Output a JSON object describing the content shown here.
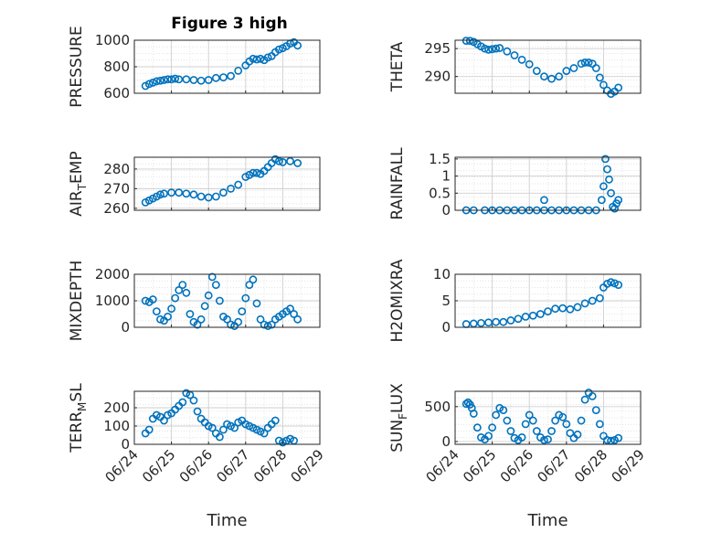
{
  "title": "Figure 3 high",
  "colors": {
    "marker": "#0072BD",
    "grid": "#dcdcdc",
    "axis": "#262626"
  },
  "chart_data": [
    {
      "type": "scatter",
      "title": "Figure 3 high",
      "ylabel": "PRESSURE",
      "ylim": [
        600,
        1000
      ],
      "yticks": [
        "600",
        "800",
        "1000"
      ],
      "grid": true,
      "x": [
        0.3,
        0.4,
        0.5,
        0.6,
        0.7,
        0.8,
        0.9,
        1.0,
        1.1,
        1.2,
        1.4,
        1.6,
        1.8,
        2.0,
        2.2,
        2.4,
        2.6,
        2.8,
        3.0,
        3.1,
        3.2,
        3.3,
        3.4,
        3.5,
        3.6,
        3.7,
        3.8,
        3.9,
        4.0,
        4.1,
        4.2,
        4.3,
        4.4
      ],
      "y": [
        655,
        670,
        680,
        690,
        695,
        700,
        705,
        705,
        710,
        705,
        705,
        700,
        695,
        700,
        715,
        720,
        730,
        770,
        810,
        840,
        860,
        855,
        860,
        850,
        870,
        880,
        910,
        930,
        940,
        955,
        975,
        985,
        960
      ]
    },
    {
      "type": "scatter",
      "ylabel": "THETA",
      "ylim": [
        287,
        296.5
      ],
      "yticks": [
        "290",
        "295"
      ],
      "grid": true,
      "x": [
        0.3,
        0.4,
        0.5,
        0.6,
        0.7,
        0.8,
        0.9,
        1.0,
        1.1,
        1.2,
        1.4,
        1.6,
        1.8,
        2.0,
        2.2,
        2.4,
        2.6,
        2.8,
        3.0,
        3.2,
        3.4,
        3.5,
        3.6,
        3.7,
        3.8,
        3.9,
        4.0,
        4.1,
        4.2,
        4.3,
        4.4
      ],
      "y": [
        296.4,
        296.4,
        296.2,
        295.8,
        295.4,
        295.0,
        294.8,
        294.9,
        295.0,
        295.1,
        294.5,
        293.8,
        293.0,
        292.2,
        291.0,
        290.0,
        289.6,
        290.0,
        291.0,
        291.5,
        292.3,
        292.5,
        292.5,
        292.3,
        291.5,
        289.8,
        288.5,
        287.5,
        286.9,
        287.3,
        288.0
      ]
    },
    {
      "type": "scatter",
      "ylabel": "AIR_TEMP",
      "ylim": [
        259,
        286
      ],
      "yticks": [
        "260",
        "270",
        "280"
      ],
      "grid": true,
      "x": [
        0.3,
        0.4,
        0.5,
        0.6,
        0.7,
        0.8,
        1.0,
        1.2,
        1.4,
        1.6,
        1.8,
        2.0,
        2.2,
        2.4,
        2.6,
        2.8,
        3.0,
        3.1,
        3.2,
        3.3,
        3.4,
        3.5,
        3.6,
        3.7,
        3.8,
        3.9,
        4.0,
        4.2,
        4.4
      ],
      "y": [
        263,
        264,
        265,
        266,
        267,
        267.5,
        268,
        268,
        267.5,
        267,
        266,
        265.5,
        266,
        268,
        270,
        272,
        276,
        277,
        278,
        278,
        277.5,
        279,
        281,
        283,
        285,
        284,
        283.5,
        284,
        283
      ]
    },
    {
      "type": "scatter",
      "ylabel": "RAINFALL",
      "ylim": [
        0,
        1.55
      ],
      "yticks": [
        "0",
        "0.5",
        "1",
        "1.5"
      ],
      "grid": true,
      "x": [
        0.3,
        0.5,
        0.8,
        1.0,
        1.2,
        1.4,
        1.6,
        1.8,
        2.0,
        2.2,
        2.4,
        2.6,
        2.8,
        3.0,
        3.2,
        3.4,
        3.6,
        3.8,
        3.95,
        4.0,
        4.05,
        4.1,
        4.15,
        4.2,
        4.25,
        4.3,
        4.35,
        4.4,
        2.4
      ],
      "y": [
        0,
        0,
        0,
        0,
        0,
        0,
        0,
        0,
        0,
        0,
        0,
        0,
        0,
        0,
        0,
        0,
        0,
        0,
        0.3,
        0.7,
        1.5,
        1.2,
        0.9,
        0.5,
        0.1,
        0.05,
        0.2,
        0.3,
        0.3
      ]
    },
    {
      "type": "scatter",
      "ylabel": "MIXDEPTH",
      "ylim": [
        0,
        2000
      ],
      "yticks": [
        "0",
        "1000",
        "2000"
      ],
      "grid": true,
      "x": [
        0.3,
        0.4,
        0.5,
        0.6,
        0.7,
        0.8,
        0.9,
        1.0,
        1.1,
        1.2,
        1.3,
        1.4,
        1.5,
        1.6,
        1.7,
        1.8,
        1.9,
        2.0,
        2.1,
        2.2,
        2.3,
        2.4,
        2.5,
        2.6,
        2.7,
        2.8,
        2.9,
        3.0,
        3.1,
        3.2,
        3.3,
        3.4,
        3.5,
        3.6,
        3.7,
        3.8,
        3.9,
        4.0,
        4.1,
        4.2,
        4.3,
        4.4
      ],
      "y": [
        1000,
        950,
        1050,
        600,
        300,
        250,
        400,
        700,
        1100,
        1400,
        1600,
        1300,
        500,
        200,
        100,
        300,
        800,
        1200,
        1900,
        1600,
        1000,
        400,
        300,
        100,
        50,
        200,
        600,
        1100,
        1600,
        1800,
        900,
        300,
        100,
        50,
        100,
        300,
        400,
        500,
        600,
        700,
        500,
        300
      ]
    },
    {
      "type": "scatter",
      "ylabel": "H2OMIXRA",
      "ylim": [
        0,
        10
      ],
      "yticks": [
        "0",
        "5",
        "10"
      ],
      "grid": true,
      "x": [
        0.3,
        0.5,
        0.7,
        0.9,
        1.1,
        1.3,
        1.5,
        1.7,
        1.9,
        2.1,
        2.3,
        2.5,
        2.7,
        2.9,
        3.1,
        3.3,
        3.5,
        3.7,
        3.9,
        4.0,
        4.1,
        4.2,
        4.3,
        4.4
      ],
      "y": [
        0.6,
        0.7,
        0.8,
        0.9,
        1.0,
        1.0,
        1.3,
        1.6,
        2.0,
        2.2,
        2.5,
        3.0,
        3.5,
        3.6,
        3.4,
        3.8,
        4.5,
        5.0,
        5.5,
        7.5,
        8.2,
        8.5,
        8.3,
        8.0
      ]
    },
    {
      "type": "scatter",
      "ylabel": "TERR_MSL",
      "ylim": [
        0,
        290
      ],
      "yticks": [
        "0",
        "100",
        "200"
      ],
      "grid": true,
      "x": [
        0.3,
        0.4,
        0.5,
        0.6,
        0.7,
        0.8,
        0.9,
        1.0,
        1.1,
        1.2,
        1.3,
        1.4,
        1.5,
        1.6,
        1.7,
        1.8,
        1.9,
        2.0,
        2.1,
        2.2,
        2.3,
        2.4,
        2.5,
        2.6,
        2.7,
        2.8,
        2.9,
        3.0,
        3.1,
        3.2,
        3.3,
        3.4,
        3.5,
        3.6,
        3.7,
        3.8,
        3.9,
        4.0,
        4.1,
        4.2,
        4.3
      ],
      "y": [
        60,
        80,
        140,
        160,
        150,
        130,
        160,
        170,
        190,
        210,
        230,
        280,
        270,
        240,
        180,
        140,
        120,
        100,
        90,
        60,
        40,
        80,
        110,
        100,
        90,
        120,
        130,
        110,
        100,
        90,
        80,
        70,
        60,
        90,
        110,
        130,
        20,
        10,
        20,
        30,
        20
      ]
    },
    {
      "type": "scatter",
      "ylabel": "SUN_FLUX",
      "ylim": [
        -40,
        720
      ],
      "yticks": [
        "0",
        "500"
      ],
      "grid": true,
      "x": [
        0.3,
        0.35,
        0.4,
        0.45,
        0.5,
        0.6,
        0.7,
        0.8,
        0.9,
        1.0,
        1.1,
        1.2,
        1.3,
        1.4,
        1.5,
        1.6,
        1.7,
        1.8,
        1.9,
        2.0,
        2.1,
        2.2,
        2.3,
        2.4,
        2.5,
        2.6,
        2.7,
        2.8,
        2.9,
        3.0,
        3.1,
        3.2,
        3.3,
        3.4,
        3.5,
        3.6,
        3.7,
        3.8,
        3.9,
        4.0,
        4.1,
        4.2,
        4.3,
        4.4
      ],
      "y": [
        540,
        560,
        530,
        480,
        400,
        200,
        60,
        30,
        80,
        200,
        380,
        480,
        450,
        300,
        150,
        50,
        20,
        60,
        250,
        380,
        300,
        150,
        60,
        20,
        30,
        150,
        300,
        380,
        350,
        250,
        120,
        50,
        100,
        300,
        600,
        700,
        650,
        450,
        250,
        80,
        20,
        10,
        20,
        50
      ]
    }
  ],
  "x_axis": {
    "label": "Time",
    "xlim": [
      0,
      5
    ],
    "ticks": [
      "06/24",
      "06/25",
      "06/26",
      "06/27",
      "06/28",
      "06/29"
    ]
  },
  "panels": [
    {
      "ylab_parts": [
        [
          "PRESSURE",
          false
        ]
      ]
    },
    {
      "ylab_parts": [
        [
          "THETA",
          false
        ]
      ]
    },
    {
      "ylab_parts": [
        [
          "AIR",
          false
        ],
        [
          "T",
          true
        ],
        [
          "EMP",
          false
        ]
      ]
    },
    {
      "ylab_parts": [
        [
          "RAINFALL",
          false
        ]
      ]
    },
    {
      "ylab_parts": [
        [
          "MIXDEPTH",
          false
        ]
      ]
    },
    {
      "ylab_parts": [
        [
          "H2OMIXRA",
          false
        ]
      ]
    },
    {
      "ylab_parts": [
        [
          "TERR",
          false
        ],
        [
          "M",
          true
        ],
        [
          "SL",
          false
        ]
      ]
    },
    {
      "ylab_parts": [
        [
          "SUN",
          false
        ],
        [
          "F",
          true
        ],
        [
          "LUX",
          false
        ]
      ]
    }
  ]
}
